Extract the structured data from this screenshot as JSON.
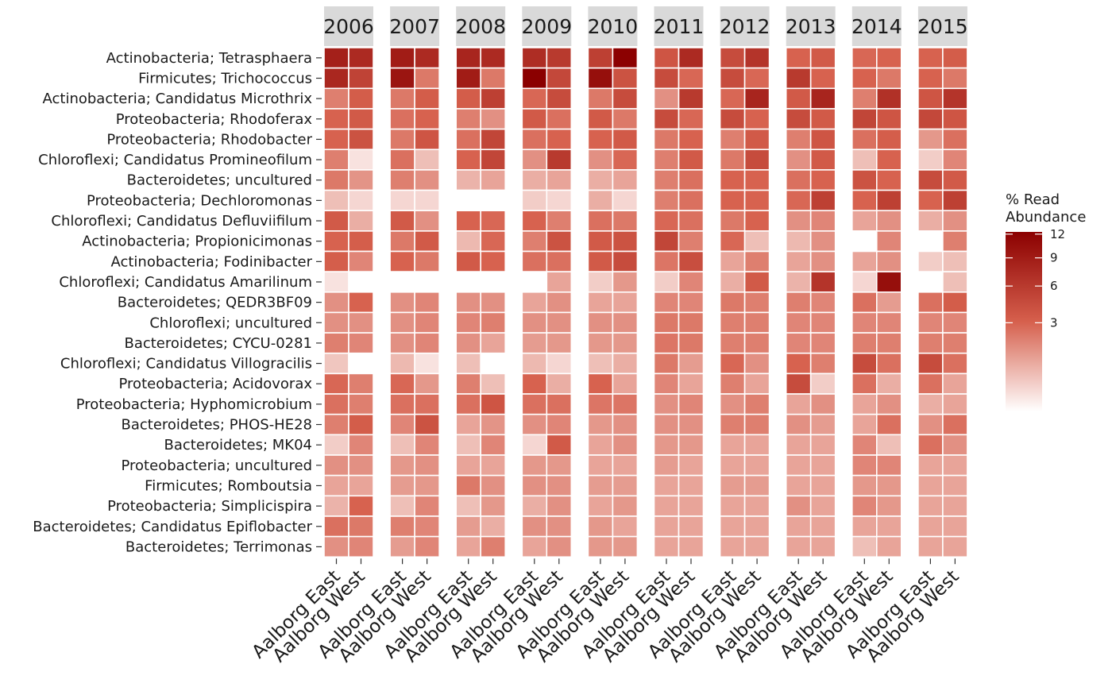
{
  "chart_data": {
    "type": "heatmap",
    "legend": {
      "title_lines": [
        "% Read",
        "Abundance"
      ],
      "ticks": [
        3,
        6,
        9,
        12
      ],
      "placement": "right",
      "scale": "sqrt"
    },
    "colors": {
      "low": "#ffffff",
      "mid": "#d6604d",
      "high": "#8b0000",
      "facet_strip": "#d9d9d9"
    },
    "value_max": 12.3,
    "facets": [
      "2006",
      "2007",
      "2008",
      "2009",
      "2010",
      "2011",
      "2012",
      "2013",
      "2014",
      "2015"
    ],
    "columns": [
      "Aalborg East",
      "Aalborg West"
    ],
    "taxa": [
      "Actinobacteria; Tetrasphaera",
      "Firmicutes; Trichococcus",
      "Actinobacteria; Candidatus Microthrix",
      "Proteobacteria; Rhodoferax",
      "Proteobacteria; Rhodobacter",
      "Chloroflexi; Candidatus Promineofilum",
      "Bacteroidetes; uncultured",
      "Proteobacteria; Dechloromonas",
      "Chloroflexi; Candidatus Defluviifilum",
      "Actinobacteria; Propionicimonas",
      "Actinobacteria; Fodinibacter",
      "Chloroflexi; Candidatus Amarilinum",
      "Bacteroidetes; QEDR3BF09",
      "Chloroflexi; uncultured",
      "Bacteroidetes; CYCU-0281",
      "Chloroflexi; Candidatus Villogracilis",
      "Proteobacteria; Acidovorax",
      "Proteobacteria; Hyphomicrobium",
      "Bacteroidetes; PHOS-HE28",
      "Bacteroidetes; MK04",
      "Proteobacteria; uncultured",
      "Firmicutes; Romboutsia",
      "Proteobacteria; Simplicispira",
      "Bacteroidetes; Candidatus Epiflobacter",
      "Bacteroidetes; Terrimonas"
    ],
    "values": [
      [
        [
          8.5,
          7.5
        ],
        [
          7.8,
          5.2
        ],
        [
          2.0,
          3.3
        ],
        [
          3.0,
          3.5
        ],
        [
          3.0,
          4.0
        ],
        [
          2.0,
          0.1
        ],
        [
          2.2,
          1.4
        ],
        [
          0.5,
          0.2
        ],
        [
          3.5,
          0.8
        ],
        [
          3.0,
          3.2
        ],
        [
          3.2,
          1.8
        ],
        [
          0.1,
          0
        ],
        [
          1.5,
          3.0
        ],
        [
          1.5,
          1.5
        ],
        [
          2.0,
          1.8
        ],
        [
          0.4,
          0
        ],
        [
          2.8,
          2.0
        ],
        [
          2.5,
          2.0
        ],
        [
          2.0,
          3.3
        ],
        [
          0.3,
          1.8
        ],
        [
          1.5,
          1.5
        ],
        [
          1.0,
          1.0
        ],
        [
          0.7,
          3.0
        ],
        [
          2.5,
          2.2
        ],
        [
          1.5,
          1.8
        ]
      ],
      [
        [
          9.0,
          7.5
        ],
        [
          9.8,
          2.2
        ],
        [
          2.2,
          3.3
        ],
        [
          2.5,
          3.0
        ],
        [
          2.2,
          3.8
        ],
        [
          2.5,
          0.5
        ],
        [
          2.0,
          1.5
        ],
        [
          0.2,
          0.2
        ],
        [
          3.5,
          1.5
        ],
        [
          2.2,
          3.5
        ],
        [
          3.0,
          2.2
        ],
        [
          0,
          0
        ],
        [
          1.5,
          1.8
        ],
        [
          1.5,
          1.8
        ],
        [
          1.5,
          1.8
        ],
        [
          0.6,
          0.1
        ],
        [
          2.8,
          1.3
        ],
        [
          2.5,
          2.5
        ],
        [
          1.8,
          4.0
        ],
        [
          0.5,
          1.8
        ],
        [
          1.3,
          1.5
        ],
        [
          1.2,
          1.3
        ],
        [
          0.5,
          1.8
        ],
        [
          2.0,
          1.8
        ],
        [
          1.2,
          1.8
        ]
      ],
      [
        [
          8.0,
          7.5
        ],
        [
          9.0,
          2.2
        ],
        [
          3.3,
          5.5
        ],
        [
          2.0,
          1.5
        ],
        [
          2.5,
          5.0
        ],
        [
          3.0,
          5.0
        ],
        [
          0.7,
          1.0
        ],
        [
          0,
          0
        ],
        [
          3.0,
          2.8
        ],
        [
          0.6,
          2.8
        ],
        [
          3.5,
          3.0
        ],
        [
          0,
          0
        ],
        [
          1.5,
          1.5
        ],
        [
          1.8,
          2.0
        ],
        [
          1.5,
          1.0
        ],
        [
          0.5,
          0
        ],
        [
          2.0,
          0.5
        ],
        [
          2.5,
          3.8
        ],
        [
          1.0,
          1.4
        ],
        [
          0.5,
          1.8
        ],
        [
          1.0,
          1.0
        ],
        [
          2.2,
          1.5
        ],
        [
          0.5,
          1.3
        ],
        [
          1.2,
          0.8
        ],
        [
          1.0,
          2.0
        ]
      ],
      [
        [
          7.2,
          6.0
        ],
        [
          12.3,
          4.8
        ],
        [
          2.8,
          4.5
        ],
        [
          3.5,
          2.5
        ],
        [
          2.5,
          3.0
        ],
        [
          1.5,
          6.0
        ],
        [
          0.8,
          1.0
        ],
        [
          0.3,
          0.2
        ],
        [
          3.0,
          2.0
        ],
        [
          2.0,
          4.0
        ],
        [
          2.5,
          2.5
        ],
        [
          0,
          1.0
        ],
        [
          1.0,
          1.5
        ],
        [
          1.5,
          1.5
        ],
        [
          1.2,
          1.3
        ],
        [
          0.6,
          0.2
        ],
        [
          3.0,
          0.8
        ],
        [
          2.5,
          2.5
        ],
        [
          1.5,
          1.8
        ],
        [
          0.2,
          3.5
        ],
        [
          1.3,
          1.3
        ],
        [
          1.5,
          1.5
        ],
        [
          0.8,
          1.5
        ],
        [
          1.5,
          1.5
        ],
        [
          1.0,
          1.5
        ]
      ],
      [
        [
          5.5,
          12.2
        ],
        [
          10.5,
          4.0
        ],
        [
          2.2,
          4.5
        ],
        [
          3.5,
          2.2
        ],
        [
          3.0,
          3.5
        ],
        [
          1.5,
          2.8
        ],
        [
          0.8,
          1.0
        ],
        [
          0.8,
          0.2
        ],
        [
          2.5,
          2.2
        ],
        [
          3.5,
          4.0
        ],
        [
          3.5,
          4.5
        ],
        [
          0.3,
          1.3
        ],
        [
          1.0,
          1.0
        ],
        [
          1.5,
          1.5
        ],
        [
          1.3,
          1.3
        ],
        [
          0.5,
          0.8
        ],
        [
          3.0,
          1.0
        ],
        [
          2.3,
          2.3
        ],
        [
          1.3,
          1.5
        ],
        [
          1.0,
          1.5
        ],
        [
          1.0,
          1.0
        ],
        [
          1.2,
          1.2
        ],
        [
          1.0,
          1.3
        ],
        [
          1.3,
          1.0
        ],
        [
          1.3,
          1.3
        ]
      ],
      [
        [
          3.8,
          7.5
        ],
        [
          4.5,
          2.8
        ],
        [
          1.5,
          6.0
        ],
        [
          4.5,
          2.8
        ],
        [
          2.2,
          3.0
        ],
        [
          2.0,
          3.5
        ],
        [
          2.0,
          2.5
        ],
        [
          2.0,
          2.5
        ],
        [
          2.8,
          2.5
        ],
        [
          5.0,
          2.0
        ],
        [
          2.3,
          4.3
        ],
        [
          0.3,
          1.8
        ],
        [
          1.8,
          1.8
        ],
        [
          2.2,
          2.2
        ],
        [
          2.3,
          2.2
        ],
        [
          2.2,
          1.2
        ],
        [
          1.8,
          1.0
        ],
        [
          1.5,
          1.8
        ],
        [
          1.5,
          1.5
        ],
        [
          1.3,
          1.3
        ],
        [
          1.2,
          1.0
        ],
        [
          1.0,
          1.0
        ],
        [
          1.0,
          1.0
        ],
        [
          1.0,
          1.0
        ],
        [
          1.0,
          1.0
        ]
      ],
      [
        [
          4.5,
          6.5
        ],
        [
          4.5,
          2.8
        ],
        [
          2.8,
          8.0
        ],
        [
          4.5,
          3.0
        ],
        [
          2.0,
          3.5
        ],
        [
          2.2,
          4.5
        ],
        [
          3.0,
          3.0
        ],
        [
          3.0,
          3.0
        ],
        [
          2.2,
          3.0
        ],
        [
          2.8,
          0.5
        ],
        [
          1.0,
          2.0
        ],
        [
          0.8,
          3.5
        ],
        [
          2.2,
          2.0
        ],
        [
          2.0,
          2.0
        ],
        [
          2.0,
          2.0
        ],
        [
          2.8,
          1.5
        ],
        [
          2.0,
          1.0
        ],
        [
          1.5,
          2.0
        ],
        [
          2.0,
          2.0
        ],
        [
          1.0,
          1.0
        ],
        [
          1.0,
          1.0
        ],
        [
          1.2,
          1.2
        ],
        [
          1.0,
          1.0
        ],
        [
          1.0,
          1.0
        ],
        [
          1.0,
          1.0
        ]
      ],
      [
        [
          3.0,
          3.5
        ],
        [
          6.0,
          3.0
        ],
        [
          3.5,
          8.0
        ],
        [
          4.5,
          3.5
        ],
        [
          2.0,
          3.8
        ],
        [
          1.5,
          3.5
        ],
        [
          2.5,
          3.0
        ],
        [
          2.8,
          5.5
        ],
        [
          1.5,
          1.8
        ],
        [
          0.6,
          1.5
        ],
        [
          1.0,
          1.5
        ],
        [
          0.7,
          6.5
        ],
        [
          2.0,
          1.8
        ],
        [
          1.8,
          1.8
        ],
        [
          1.8,
          1.8
        ],
        [
          3.0,
          2.0
        ],
        [
          4.5,
          0.3
        ],
        [
          1.0,
          1.5
        ],
        [
          1.5,
          1.2
        ],
        [
          1.0,
          1.0
        ],
        [
          1.0,
          1.0
        ],
        [
          1.0,
          1.0
        ],
        [
          1.5,
          1.0
        ],
        [
          1.0,
          1.0
        ],
        [
          1.0,
          1.0
        ]
      ],
      [
        [
          2.8,
          3.0
        ],
        [
          3.0,
          2.2
        ],
        [
          2.0,
          6.8
        ],
        [
          5.0,
          3.8
        ],
        [
          2.5,
          3.2
        ],
        [
          0.5,
          3.0
        ],
        [
          4.0,
          3.0
        ],
        [
          3.0,
          5.5
        ],
        [
          1.0,
          1.5
        ],
        [
          0,
          1.8
        ],
        [
          1.0,
          1.5
        ],
        [
          0.2,
          10.5
        ],
        [
          2.5,
          1.2
        ],
        [
          1.8,
          1.8
        ],
        [
          2.0,
          2.0
        ],
        [
          4.5,
          2.5
        ],
        [
          2.5,
          0.8
        ],
        [
          1.0,
          1.5
        ],
        [
          1.0,
          2.5
        ],
        [
          1.8,
          0.5
        ],
        [
          1.8,
          1.8
        ],
        [
          1.3,
          1.3
        ],
        [
          1.8,
          1.3
        ],
        [
          1.0,
          1.0
        ],
        [
          0.5,
          1.0
        ]
      ],
      [
        [
          3.0,
          3.3
        ],
        [
          3.0,
          2.2
        ],
        [
          3.8,
          6.5
        ],
        [
          4.8,
          3.8
        ],
        [
          1.3,
          2.5
        ],
        [
          0.3,
          1.8
        ],
        [
          4.5,
          3.5
        ],
        [
          3.0,
          5.5
        ],
        [
          0.8,
          1.5
        ],
        [
          0,
          2.0
        ],
        [
          0.3,
          0.5
        ],
        [
          0,
          0.5
        ],
        [
          2.5,
          3.3
        ],
        [
          1.8,
          1.8
        ],
        [
          2.0,
          2.0
        ],
        [
          4.5,
          2.5
        ],
        [
          2.5,
          1.0
        ],
        [
          0.8,
          1.0
        ],
        [
          1.5,
          2.5
        ],
        [
          2.5,
          1.5
        ],
        [
          1.0,
          1.0
        ],
        [
          1.0,
          1.0
        ],
        [
          1.0,
          1.0
        ],
        [
          1.0,
          1.0
        ],
        [
          1.0,
          1.0
        ]
      ]
    ]
  }
}
